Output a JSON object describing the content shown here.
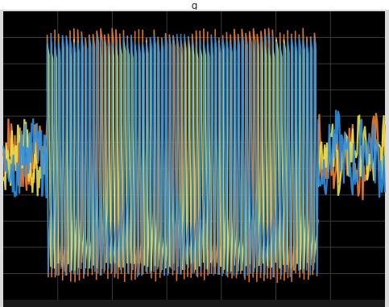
{
  "window": {
    "title_fragment": "g"
  },
  "chart_data": {
    "type": "line",
    "title": "",
    "xlabel": "",
    "ylabel": "",
    "xlim": [
      0,
      0.1
    ],
    "ylim": [
      -1.3,
      1.3
    ],
    "grid": true,
    "legend": "none",
    "background": "#000000",
    "grid_color": "#3a3a3a",
    "series": [
      {
        "color": "#f07f2e",
        "phase": "a",
        "segments": [
          {
            "t_start": 0.0,
            "t_end": 0.0115,
            "behavior": "noisy",
            "amplitude": 0.3
          },
          {
            "t_start": 0.0115,
            "t_end": 0.0825,
            "behavior": "switching",
            "amplitude": 1.15
          },
          {
            "t_start": 0.0825,
            "t_end": 0.1,
            "behavior": "noisy",
            "amplitude": 0.3
          }
        ]
      },
      {
        "color": "#e8e04a",
        "phase": "b",
        "segments": [
          {
            "t_start": 0.0,
            "t_end": 0.0115,
            "behavior": "noisy",
            "amplitude": 0.28
          },
          {
            "t_start": 0.0115,
            "t_end": 0.0825,
            "behavior": "switching",
            "amplitude": 1.05
          },
          {
            "t_start": 0.0825,
            "t_end": 0.1,
            "behavior": "noisy",
            "amplitude": 0.28
          }
        ]
      },
      {
        "color": "#2f8fe0",
        "phase": "c",
        "segments": [
          {
            "t_start": 0.0,
            "t_end": 0.0115,
            "behavior": "noisy",
            "amplitude": 0.3
          },
          {
            "t_start": 0.0115,
            "t_end": 0.0825,
            "behavior": "switching",
            "amplitude": 1.1
          },
          {
            "t_start": 0.0825,
            "t_end": 0.1,
            "behavior": "noisy",
            "amplitude": 0.3
          }
        ]
      }
    ],
    "switching_frequency_cycles": 30,
    "fundamental_cycles": 5
  }
}
